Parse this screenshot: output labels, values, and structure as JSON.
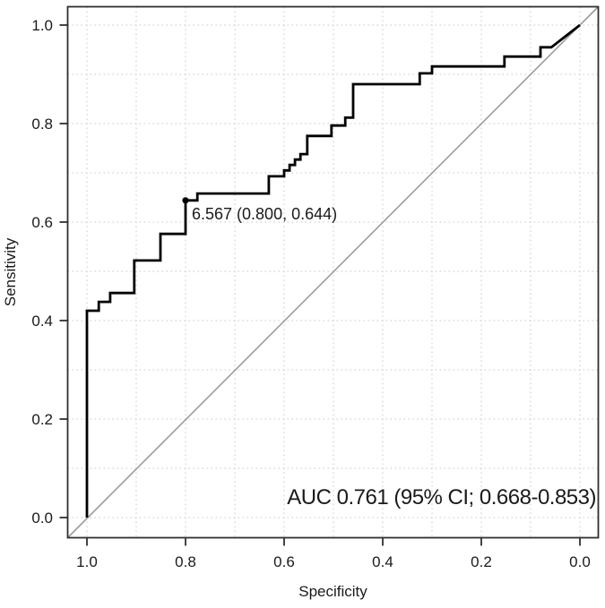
{
  "page": {
    "background": "#ffffff"
  },
  "chart_data": {
    "type": "line",
    "chart_kind": "roc-curve-step-plot",
    "title": "",
    "xlabel": "Specificity",
    "ylabel": "Sensitivity",
    "x_axis_reversed": true,
    "xlim": [
      1.04,
      -0.04
    ],
    "ylim": [
      -0.04,
      1.04
    ],
    "x_tick_labels": [
      "1.0",
      "0.8",
      "0.6",
      "0.4",
      "0.2",
      "0.0"
    ],
    "x_tick_values": [
      1.0,
      0.8,
      0.6,
      0.4,
      0.2,
      0.0
    ],
    "y_tick_labels": [
      "0.0",
      "0.2",
      "0.4",
      "0.6",
      "0.8",
      "1.0"
    ],
    "y_tick_values": [
      0.0,
      0.2,
      0.4,
      0.6,
      0.8,
      1.0
    ],
    "grid": {
      "visible": true,
      "interval": 0.1,
      "style": "dotted",
      "color": "#d3d3d3"
    },
    "diagonal_reference_line": {
      "from": [
        1.0,
        0.0
      ],
      "to": [
        0.0,
        1.0
      ],
      "color": "#9c9c9c"
    },
    "series": [
      {
        "name": "ROC curve",
        "color": "#000000",
        "points": [
          [
            1.0,
            0.0
          ],
          [
            1.0,
            0.42
          ],
          [
            0.976,
            0.42
          ],
          [
            0.976,
            0.438
          ],
          [
            0.953,
            0.438
          ],
          [
            0.953,
            0.456
          ],
          [
            0.904,
            0.456
          ],
          [
            0.904,
            0.522
          ],
          [
            0.851,
            0.522
          ],
          [
            0.851,
            0.576
          ],
          [
            0.8,
            0.576
          ],
          [
            0.8,
            0.644
          ],
          [
            0.776,
            0.644
          ],
          [
            0.776,
            0.658
          ],
          [
            0.631,
            0.658
          ],
          [
            0.631,
            0.693
          ],
          [
            0.6,
            0.693
          ],
          [
            0.6,
            0.705
          ],
          [
            0.589,
            0.705
          ],
          [
            0.589,
            0.716
          ],
          [
            0.578,
            0.716
          ],
          [
            0.578,
            0.727
          ],
          [
            0.567,
            0.727
          ],
          [
            0.567,
            0.738
          ],
          [
            0.553,
            0.738
          ],
          [
            0.553,
            0.775
          ],
          [
            0.504,
            0.775
          ],
          [
            0.504,
            0.796
          ],
          [
            0.476,
            0.796
          ],
          [
            0.476,
            0.812
          ],
          [
            0.46,
            0.812
          ],
          [
            0.46,
            0.88
          ],
          [
            0.325,
            0.88
          ],
          [
            0.325,
            0.902
          ],
          [
            0.3,
            0.902
          ],
          [
            0.3,
            0.916
          ],
          [
            0.153,
            0.916
          ],
          [
            0.153,
            0.936
          ],
          [
            0.08,
            0.936
          ],
          [
            0.08,
            0.955
          ],
          [
            0.058,
            0.955
          ],
          [
            0.0,
            1.0
          ]
        ]
      }
    ],
    "marked_point": {
      "threshold": 6.567,
      "specificity": 0.8,
      "sensitivity": 0.644,
      "label": "6.567 (0.800, 0.644)"
    },
    "annotations": {
      "auc_label": "AUC 0.761 (95% CI; 0.668-0.853)",
      "auc_value": 0.761,
      "ci_low": 0.668,
      "ci_high": 0.853
    },
    "colors": {
      "curve": "#000000",
      "diagonal": "#9c9c9c",
      "grid": "#d3d3d3",
      "frame": "#2f2f2f",
      "text": "#1a1a1a"
    }
  }
}
